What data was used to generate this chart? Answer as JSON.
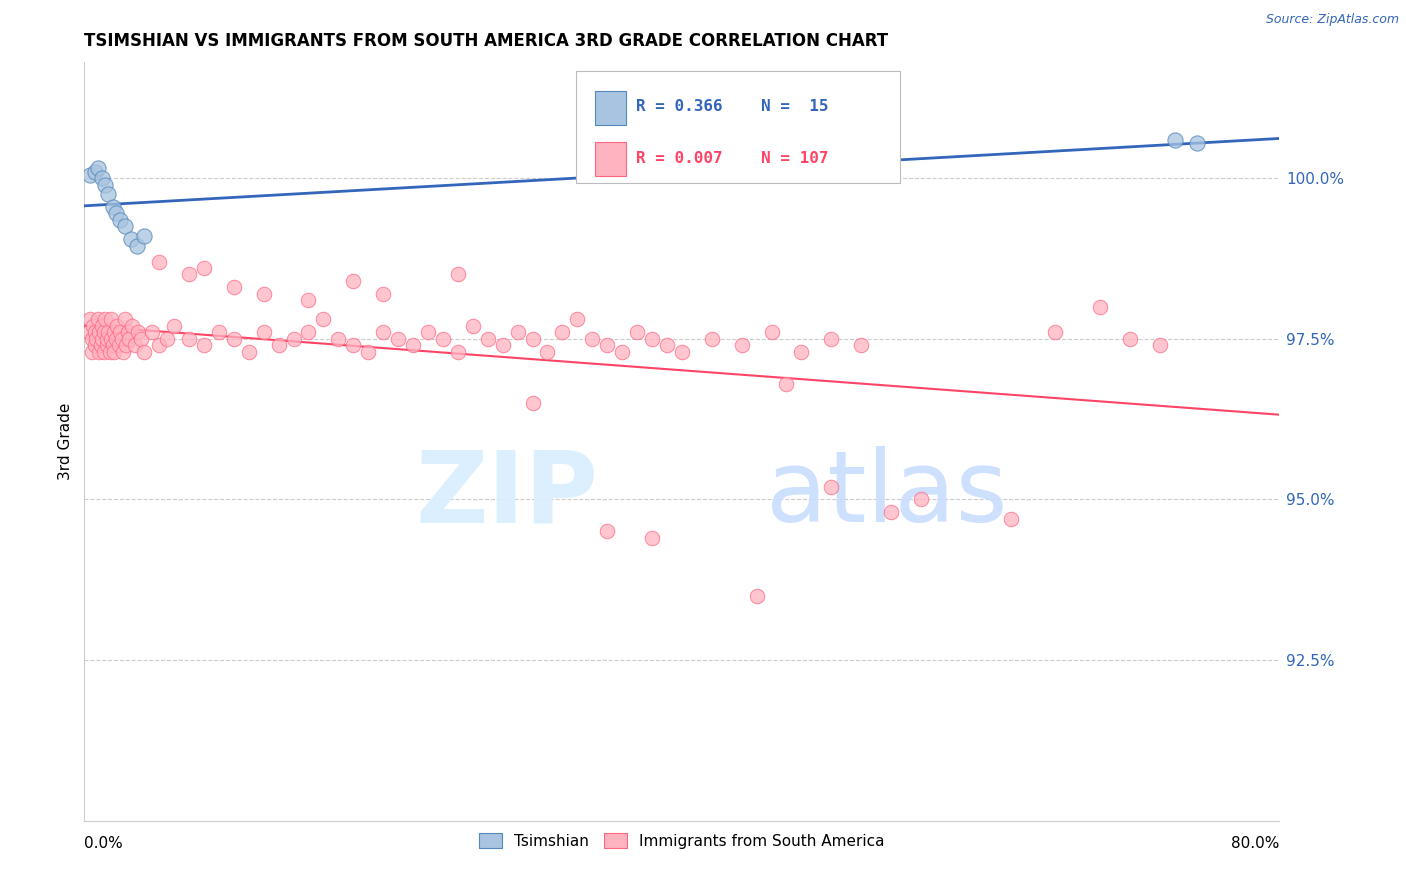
{
  "title": "TSIMSHIAN VS IMMIGRANTS FROM SOUTH AMERICA 3RD GRADE CORRELATION CHART",
  "source": "Source: ZipAtlas.com",
  "ylabel": "3rd Grade",
  "xmin": 0.0,
  "xmax": 80.0,
  "ymin": 90.0,
  "ymax": 101.8,
  "yticks": [
    92.5,
    95.0,
    97.5,
    100.0
  ],
  "ytick_labels": [
    "92.5%",
    "95.0%",
    "97.5%",
    "100.0%"
  ],
  "blue_color": "#A8C4E0",
  "pink_color": "#FFB3C1",
  "blue_edge_color": "#5588BB",
  "pink_edge_color": "#FF6680",
  "blue_line_color": "#3366BB",
  "pink_line_color": "#FF4466",
  "blue_x": [
    0.4,
    0.7,
    0.9,
    1.2,
    1.4,
    1.6,
    1.9,
    2.1,
    2.4,
    2.7,
    3.1,
    3.5,
    4.0,
    73.0,
    74.5
  ],
  "blue_y": [
    100.05,
    100.1,
    100.15,
    100.0,
    99.9,
    99.75,
    99.55,
    99.45,
    99.35,
    99.25,
    99.05,
    98.95,
    99.1,
    100.6,
    100.55
  ],
  "pink_x": [
    0.3,
    0.4,
    0.5,
    0.5,
    0.6,
    0.7,
    0.7,
    0.8,
    0.9,
    1.0,
    1.0,
    1.1,
    1.2,
    1.2,
    1.3,
    1.3,
    1.4,
    1.5,
    1.5,
    1.6,
    1.7,
    1.8,
    1.8,
    1.9,
    2.0,
    2.0,
    2.1,
    2.2,
    2.3,
    2.4,
    2.5,
    2.6,
    2.7,
    2.8,
    2.9,
    3.0,
    3.2,
    3.4,
    3.6,
    3.8,
    4.0,
    4.5,
    5.0,
    5.5,
    6.0,
    7.0,
    8.0,
    9.0,
    10.0,
    11.0,
    12.0,
    13.0,
    14.0,
    15.0,
    16.0,
    17.0,
    18.0,
    19.0,
    20.0,
    21.0,
    22.0,
    23.0,
    24.0,
    25.0,
    26.0,
    27.0,
    28.0,
    29.0,
    30.0,
    31.0,
    32.0,
    33.0,
    34.0,
    35.0,
    36.0,
    37.0,
    38.0,
    39.0,
    40.0,
    42.0,
    44.0,
    46.0,
    48.0,
    50.0,
    52.0,
    38.0,
    50.0,
    62.0,
    65.0,
    68.0,
    70.0,
    72.0,
    45.0,
    47.0,
    54.0,
    56.0,
    30.0,
    35.0,
    20.0,
    25.0,
    10.0,
    8.0,
    15.0,
    18.0,
    5.0,
    7.0,
    12.0
  ],
  "pink_y": [
    97.6,
    97.8,
    97.5,
    97.3,
    97.7,
    97.4,
    97.6,
    97.5,
    97.8,
    97.3,
    97.6,
    97.4,
    97.7,
    97.5,
    97.3,
    97.6,
    97.8,
    97.4,
    97.5,
    97.6,
    97.3,
    97.8,
    97.5,
    97.4,
    97.6,
    97.3,
    97.5,
    97.7,
    97.4,
    97.6,
    97.5,
    97.3,
    97.8,
    97.4,
    97.6,
    97.5,
    97.7,
    97.4,
    97.6,
    97.5,
    97.3,
    97.6,
    97.4,
    97.5,
    97.7,
    97.5,
    97.4,
    97.6,
    97.5,
    97.3,
    97.6,
    97.4,
    97.5,
    97.6,
    97.8,
    97.5,
    97.4,
    97.3,
    97.6,
    97.5,
    97.4,
    97.6,
    97.5,
    97.3,
    97.7,
    97.5,
    97.4,
    97.6,
    97.5,
    97.3,
    97.6,
    97.8,
    97.5,
    97.4,
    97.3,
    97.6,
    97.5,
    97.4,
    97.3,
    97.5,
    97.4,
    97.6,
    97.3,
    97.5,
    97.4,
    94.4,
    95.2,
    94.7,
    97.6,
    98.0,
    97.5,
    97.4,
    93.5,
    96.8,
    94.8,
    95.0,
    96.5,
    94.5,
    98.2,
    98.5,
    98.3,
    98.6,
    98.1,
    98.4,
    98.7,
    98.5,
    98.2
  ]
}
